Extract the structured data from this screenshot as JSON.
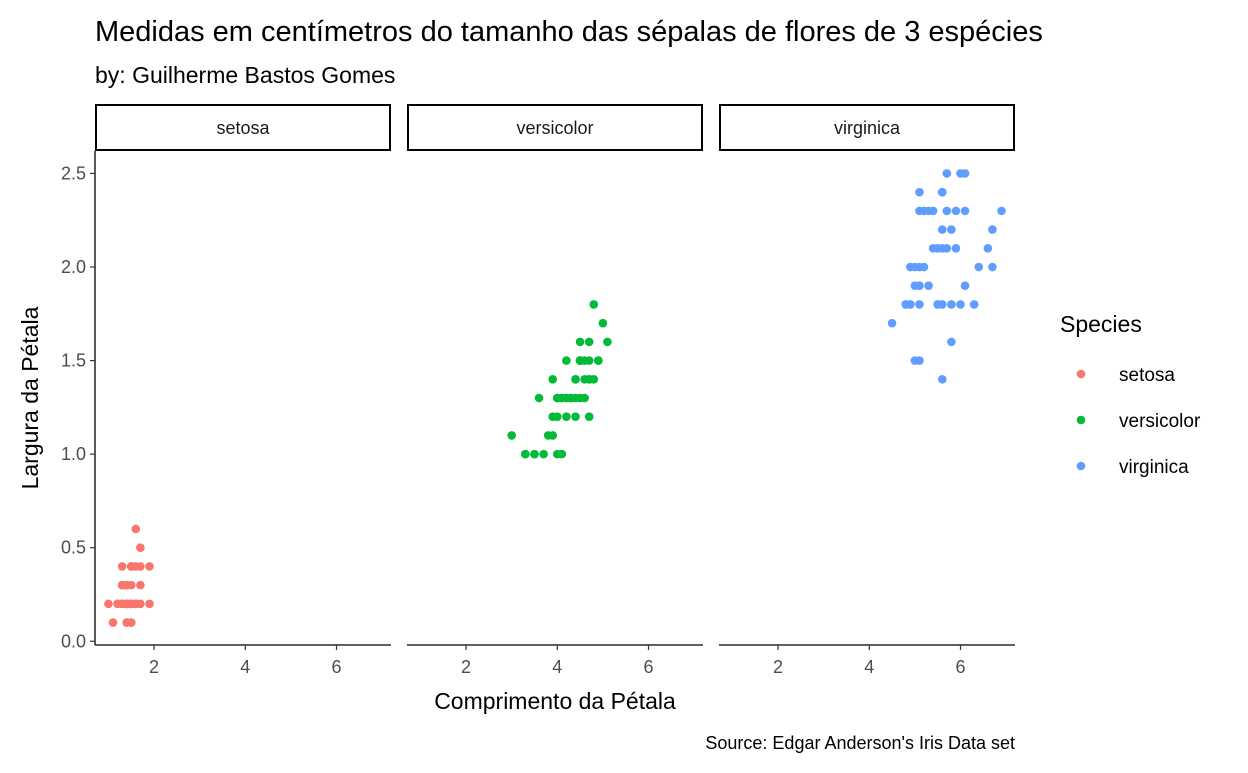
{
  "chart_data": {
    "type": "scatter",
    "title": "Medidas em centímetros do tamanho das sépalas de flores de 3 espécies",
    "subtitle": "by: Guilherme Bastos Gomes",
    "caption": "Source: Edgar Anderson's Iris Data set",
    "xlabel": "Comprimento da Pétala",
    "ylabel": "Largura da Pétala",
    "xlim": [
      0.705,
      7.195
    ],
    "ylim": [
      -0.02,
      2.62
    ],
    "x_ticks": [
      2,
      4,
      6
    ],
    "x_tick_labels": [
      "2",
      "4",
      "6"
    ],
    "y_ticks": [
      0,
      0.5,
      1,
      1.5,
      2,
      2.5
    ],
    "y_tick_labels": [
      "0.0",
      "0.5",
      "1.0",
      "1.5",
      "2.0",
      "2.5"
    ],
    "grid": false,
    "facets": [
      "setosa",
      "versicolor",
      "virginica"
    ],
    "legend": {
      "title": "Species",
      "placement": "right",
      "entries": [
        "setosa",
        "versicolor",
        "virginica"
      ]
    },
    "series": [
      {
        "name": "setosa",
        "color": "#F8766D",
        "points": [
          [
            1.4,
            0.2
          ],
          [
            1.4,
            0.2
          ],
          [
            1.3,
            0.2
          ],
          [
            1.5,
            0.2
          ],
          [
            1.4,
            0.2
          ],
          [
            1.7,
            0.4
          ],
          [
            1.4,
            0.3
          ],
          [
            1.5,
            0.2
          ],
          [
            1.4,
            0.2
          ],
          [
            1.5,
            0.1
          ],
          [
            1.5,
            0.2
          ],
          [
            1.6,
            0.2
          ],
          [
            1.4,
            0.1
          ],
          [
            1.1,
            0.1
          ],
          [
            1.2,
            0.2
          ],
          [
            1.5,
            0.4
          ],
          [
            1.3,
            0.4
          ],
          [
            1.4,
            0.3
          ],
          [
            1.7,
            0.3
          ],
          [
            1.5,
            0.3
          ],
          [
            1.7,
            0.2
          ],
          [
            1.5,
            0.4
          ],
          [
            1.0,
            0.2
          ],
          [
            1.7,
            0.5
          ],
          [
            1.9,
            0.2
          ],
          [
            1.6,
            0.2
          ],
          [
            1.6,
            0.4
          ],
          [
            1.5,
            0.2
          ],
          [
            1.4,
            0.2
          ],
          [
            1.6,
            0.2
          ],
          [
            1.6,
            0.2
          ],
          [
            1.5,
            0.4
          ],
          [
            1.5,
            0.1
          ],
          [
            1.4,
            0.2
          ],
          [
            1.5,
            0.2
          ],
          [
            1.2,
            0.2
          ],
          [
            1.3,
            0.2
          ],
          [
            1.4,
            0.1
          ],
          [
            1.3,
            0.2
          ],
          [
            1.5,
            0.2
          ],
          [
            1.3,
            0.3
          ],
          [
            1.3,
            0.3
          ],
          [
            1.3,
            0.2
          ],
          [
            1.6,
            0.6
          ],
          [
            1.9,
            0.4
          ],
          [
            1.4,
            0.3
          ],
          [
            1.6,
            0.2
          ],
          [
            1.4,
            0.2
          ],
          [
            1.5,
            0.2
          ],
          [
            1.4,
            0.2
          ]
        ]
      },
      {
        "name": "versicolor",
        "color": "#00BA38",
        "points": [
          [
            4.7,
            1.4
          ],
          [
            4.5,
            1.5
          ],
          [
            4.9,
            1.5
          ],
          [
            4.0,
            1.3
          ],
          [
            4.6,
            1.5
          ],
          [
            4.5,
            1.3
          ],
          [
            4.7,
            1.6
          ],
          [
            3.3,
            1.0
          ],
          [
            4.6,
            1.3
          ],
          [
            3.9,
            1.4
          ],
          [
            3.5,
            1.0
          ],
          [
            4.2,
            1.5
          ],
          [
            4.0,
            1.0
          ],
          [
            4.7,
            1.4
          ],
          [
            3.6,
            1.3
          ],
          [
            4.4,
            1.4
          ],
          [
            4.5,
            1.5
          ],
          [
            4.1,
            1.0
          ],
          [
            4.5,
            1.5
          ],
          [
            3.9,
            1.1
          ],
          [
            4.8,
            1.8
          ],
          [
            4.0,
            1.3
          ],
          [
            4.9,
            1.5
          ],
          [
            4.7,
            1.2
          ],
          [
            4.3,
            1.3
          ],
          [
            4.4,
            1.4
          ],
          [
            4.8,
            1.4
          ],
          [
            5.0,
            1.7
          ],
          [
            4.5,
            1.5
          ],
          [
            3.5,
            1.0
          ],
          [
            3.8,
            1.1
          ],
          [
            3.7,
            1.0
          ],
          [
            3.9,
            1.2
          ],
          [
            5.1,
            1.6
          ],
          [
            4.5,
            1.5
          ],
          [
            4.5,
            1.6
          ],
          [
            4.7,
            1.5
          ],
          [
            4.4,
            1.3
          ],
          [
            4.1,
            1.3
          ],
          [
            4.0,
            1.3
          ],
          [
            4.4,
            1.2
          ],
          [
            4.6,
            1.4
          ],
          [
            4.0,
            1.2
          ],
          [
            3.3,
            1.0
          ],
          [
            4.2,
            1.3
          ],
          [
            4.2,
            1.2
          ],
          [
            4.2,
            1.3
          ],
          [
            4.3,
            1.3
          ],
          [
            3.0,
            1.1
          ],
          [
            4.1,
            1.3
          ]
        ]
      },
      {
        "name": "virginica",
        "color": "#619CFF",
        "points": [
          [
            6.0,
            2.5
          ],
          [
            5.1,
            1.9
          ],
          [
            5.9,
            2.1
          ],
          [
            5.6,
            1.8
          ],
          [
            5.8,
            2.2
          ],
          [
            6.6,
            2.1
          ],
          [
            4.5,
            1.7
          ],
          [
            6.3,
            1.8
          ],
          [
            5.8,
            1.8
          ],
          [
            6.1,
            2.5
          ],
          [
            5.1,
            2.0
          ],
          [
            5.3,
            1.9
          ],
          [
            5.5,
            2.1
          ],
          [
            5.0,
            2.0
          ],
          [
            5.1,
            2.4
          ],
          [
            5.3,
            2.3
          ],
          [
            5.5,
            1.8
          ],
          [
            6.7,
            2.2
          ],
          [
            6.9,
            2.3
          ],
          [
            5.0,
            1.5
          ],
          [
            5.7,
            2.3
          ],
          [
            4.9,
            2.0
          ],
          [
            6.7,
            2.0
          ],
          [
            4.9,
            1.8
          ],
          [
            5.7,
            2.1
          ],
          [
            6.0,
            1.8
          ],
          [
            4.8,
            1.8
          ],
          [
            4.9,
            1.8
          ],
          [
            5.6,
            2.1
          ],
          [
            5.8,
            1.6
          ],
          [
            6.1,
            1.9
          ],
          [
            6.4,
            2.0
          ],
          [
            5.6,
            2.2
          ],
          [
            5.1,
            1.5
          ],
          [
            5.6,
            1.4
          ],
          [
            6.1,
            2.3
          ],
          [
            5.6,
            2.4
          ],
          [
            5.5,
            1.8
          ],
          [
            4.8,
            1.8
          ],
          [
            5.4,
            2.1
          ],
          [
            5.6,
            2.4
          ],
          [
            5.1,
            2.3
          ],
          [
            5.1,
            1.9
          ],
          [
            5.9,
            2.3
          ],
          [
            5.7,
            2.5
          ],
          [
            5.2,
            2.3
          ],
          [
            5.0,
            1.9
          ],
          [
            5.2,
            2.0
          ],
          [
            5.4,
            2.3
          ],
          [
            5.1,
            1.8
          ]
        ]
      }
    ]
  }
}
